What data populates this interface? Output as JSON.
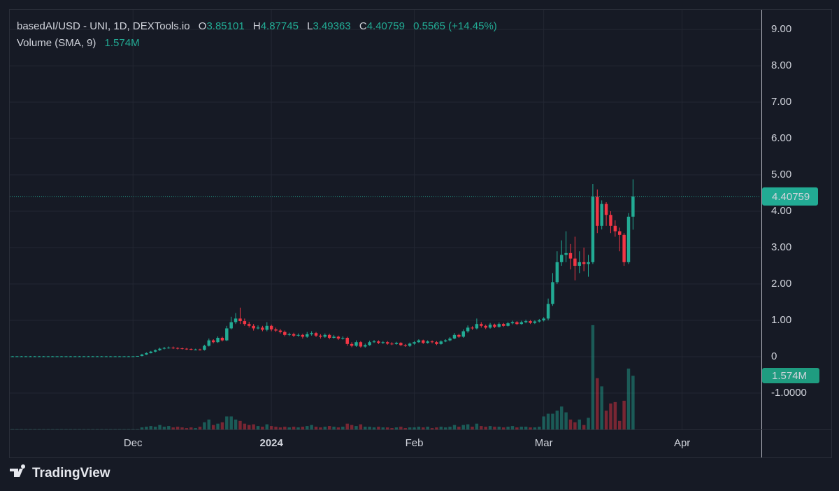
{
  "chart_data": {
    "type": "candlestick",
    "title": "basedAI/USD - UNI, 1D, DEXTools.io",
    "ohlc_labels": [
      "O",
      "H",
      "L",
      "C"
    ],
    "change": 0.5565,
    "change_percent_label": "(+14.45%)",
    "volume_title": "Volume (SMA, 9)",
    "volume_sma": {
      "value": 1.574,
      "label": "1.574M"
    },
    "categories": [
      null,
      null,
      null,
      null,
      null,
      null,
      null,
      null,
      null,
      null,
      null,
      null,
      null,
      null,
      null,
      null,
      null,
      null,
      null,
      null,
      null,
      null,
      null,
      null,
      null,
      null,
      null,
      null,
      null,
      null,
      null,
      null,
      null,
      null,
      null,
      null,
      null,
      null,
      null,
      null,
      null,
      null,
      null,
      null,
      null,
      null,
      null,
      null,
      null,
      null,
      null,
      null,
      null,
      null,
      null,
      null,
      null,
      null,
      null,
      null,
      null,
      null,
      null,
      null,
      null,
      null,
      null,
      null,
      null,
      null,
      null,
      null,
      null,
      null,
      null,
      null,
      null,
      null,
      null,
      null,
      null,
      null,
      null,
      null,
      null,
      null,
      null,
      null,
      null,
      null,
      null,
      null,
      null,
      null,
      null,
      null,
      null,
      null,
      null,
      null,
      null,
      null,
      null,
      null,
      null,
      null,
      null,
      null,
      null,
      null,
      null,
      null,
      null,
      null,
      null,
      null,
      null,
      null,
      null,
      null,
      null,
      null,
      null,
      null,
      null,
      null,
      null,
      null,
      null,
      null,
      null,
      null,
      null,
      null,
      null,
      null,
      null,
      null,
      null,
      null,
      null
    ],
    "open": [
      0.01,
      0.01,
      0.01,
      0.01,
      0.01,
      0.01,
      0.01,
      0.01,
      0.01,
      0.01,
      0.01,
      0.01,
      0.01,
      0.01,
      0.01,
      0.01,
      0.01,
      0.01,
      0.01,
      0.01,
      0.01,
      0.01,
      0.01,
      0.01,
      0.01,
      0.01,
      0.01,
      0.01,
      0.01,
      0.01,
      0.02,
      0.06,
      0.1,
      0.14,
      0.18,
      0.22,
      0.24,
      0.25,
      0.24,
      0.23,
      0.22,
      0.21,
      0.2,
      0.2,
      0.19,
      0.3,
      0.45,
      0.4,
      0.52,
      0.45,
      0.78,
      0.95,
      1.05,
      0.98,
      0.9,
      0.85,
      0.78,
      0.8,
      0.74,
      0.85,
      0.75,
      0.72,
      0.68,
      0.6,
      0.62,
      0.58,
      0.6,
      0.55,
      0.62,
      0.65,
      0.58,
      0.55,
      0.6,
      0.52,
      0.55,
      0.5,
      0.52,
      0.35,
      0.3,
      0.4,
      0.28,
      0.32,
      0.4,
      0.42,
      0.38,
      0.4,
      0.36,
      0.35,
      0.38,
      0.32,
      0.3,
      0.36,
      0.4,
      0.45,
      0.38,
      0.42,
      0.4,
      0.35,
      0.42,
      0.45,
      0.5,
      0.6,
      0.55,
      0.7,
      0.8,
      0.78,
      0.9,
      0.85,
      0.8,
      0.88,
      0.82,
      0.9,
      0.85,
      0.92,
      0.95,
      0.9,
      0.95,
      0.98,
      0.93,
      0.97,
      1.0,
      1.05,
      1.45,
      2.05,
      2.6,
      2.8,
      2.85,
      2.7,
      2.5,
      2.6,
      2.55,
      2.6,
      4.4,
      3.6,
      4.2,
      3.9,
      3.6,
      3.45,
      3.35,
      2.6,
      3.85101
    ],
    "high": [
      0.02,
      0.02,
      0.02,
      0.02,
      0.02,
      0.02,
      0.02,
      0.02,
      0.02,
      0.02,
      0.02,
      0.02,
      0.02,
      0.02,
      0.02,
      0.02,
      0.02,
      0.02,
      0.02,
      0.02,
      0.02,
      0.02,
      0.02,
      0.02,
      0.02,
      0.02,
      0.02,
      0.02,
      0.02,
      0.02,
      0.08,
      0.12,
      0.16,
      0.2,
      0.25,
      0.27,
      0.28,
      0.28,
      0.26,
      0.25,
      0.24,
      0.23,
      0.22,
      0.22,
      0.33,
      0.5,
      0.48,
      0.56,
      0.55,
      0.85,
      1.1,
      1.2,
      1.35,
      1.05,
      0.96,
      0.9,
      0.86,
      0.85,
      0.95,
      0.88,
      0.8,
      0.76,
      0.72,
      0.66,
      0.66,
      0.64,
      0.63,
      0.68,
      0.7,
      0.68,
      0.62,
      0.64,
      0.63,
      0.6,
      0.58,
      0.56,
      0.55,
      0.4,
      0.45,
      0.43,
      0.36,
      0.44,
      0.46,
      0.45,
      0.43,
      0.43,
      0.4,
      0.41,
      0.4,
      0.35,
      0.39,
      0.43,
      0.48,
      0.47,
      0.45,
      0.45,
      0.43,
      0.45,
      0.48,
      0.54,
      0.65,
      0.63,
      0.75,
      0.86,
      0.84,
      1.05,
      0.95,
      0.88,
      0.93,
      0.91,
      0.94,
      0.93,
      0.96,
      0.99,
      0.98,
      0.99,
      1.02,
      1.01,
      1.0,
      1.04,
      1.09,
      1.6,
      2.3,
      2.9,
      3.2,
      3.45,
      3.1,
      3.3,
      2.9,
      3.0,
      2.8,
      4.75,
      4.6,
      4.3,
      4.25,
      4.0,
      3.75,
      3.55,
      3.4,
      3.95,
      4.87745
    ],
    "low": [
      0.0,
      0.0,
      0.0,
      0.0,
      0.0,
      0.0,
      0.0,
      0.0,
      0.0,
      0.0,
      0.0,
      0.0,
      0.0,
      0.0,
      0.0,
      0.0,
      0.0,
      0.0,
      0.0,
      0.0,
      0.0,
      0.0,
      0.0,
      0.0,
      0.0,
      0.0,
      0.0,
      0.0,
      0.0,
      0.0,
      0.01,
      0.05,
      0.09,
      0.12,
      0.16,
      0.2,
      0.22,
      0.21,
      0.2,
      0.2,
      0.19,
      0.18,
      0.18,
      0.17,
      0.17,
      0.28,
      0.37,
      0.38,
      0.42,
      0.43,
      0.75,
      0.9,
      0.9,
      0.85,
      0.8,
      0.72,
      0.75,
      0.7,
      0.7,
      0.7,
      0.68,
      0.64,
      0.56,
      0.57,
      0.54,
      0.55,
      0.5,
      0.52,
      0.58,
      0.54,
      0.5,
      0.52,
      0.48,
      0.5,
      0.46,
      0.47,
      0.3,
      0.26,
      0.27,
      0.25,
      0.25,
      0.3,
      0.38,
      0.35,
      0.35,
      0.33,
      0.32,
      0.33,
      0.29,
      0.27,
      0.27,
      0.33,
      0.38,
      0.35,
      0.36,
      0.37,
      0.32,
      0.33,
      0.4,
      0.42,
      0.48,
      0.52,
      0.52,
      0.66,
      0.74,
      0.75,
      0.8,
      0.76,
      0.77,
      0.79,
      0.8,
      0.82,
      0.83,
      0.89,
      0.87,
      0.88,
      0.92,
      0.9,
      0.9,
      0.94,
      0.97,
      1.0,
      1.4,
      2.0,
      2.5,
      2.6,
      2.4,
      2.1,
      2.3,
      2.35,
      2.2,
      2.55,
      3.4,
      3.5,
      3.6,
      3.4,
      3.3,
      2.9,
      2.5,
      2.55,
      3.49363
    ],
    "close": [
      0.01,
      0.01,
      0.01,
      0.01,
      0.01,
      0.01,
      0.01,
      0.01,
      0.01,
      0.01,
      0.01,
      0.01,
      0.01,
      0.01,
      0.01,
      0.01,
      0.01,
      0.01,
      0.01,
      0.01,
      0.01,
      0.01,
      0.01,
      0.01,
      0.01,
      0.01,
      0.01,
      0.01,
      0.01,
      0.02,
      0.06,
      0.1,
      0.14,
      0.18,
      0.22,
      0.24,
      0.25,
      0.24,
      0.23,
      0.22,
      0.21,
      0.2,
      0.2,
      0.19,
      0.3,
      0.45,
      0.4,
      0.52,
      0.45,
      0.78,
      0.95,
      1.05,
      0.98,
      0.9,
      0.85,
      0.78,
      0.8,
      0.74,
      0.85,
      0.75,
      0.72,
      0.68,
      0.6,
      0.62,
      0.58,
      0.6,
      0.55,
      0.62,
      0.65,
      0.58,
      0.55,
      0.6,
      0.52,
      0.55,
      0.5,
      0.52,
      0.35,
      0.3,
      0.4,
      0.28,
      0.32,
      0.4,
      0.42,
      0.38,
      0.4,
      0.36,
      0.35,
      0.38,
      0.32,
      0.3,
      0.36,
      0.4,
      0.45,
      0.38,
      0.42,
      0.4,
      0.35,
      0.42,
      0.45,
      0.5,
      0.6,
      0.55,
      0.7,
      0.8,
      0.78,
      0.9,
      0.85,
      0.8,
      0.88,
      0.82,
      0.9,
      0.85,
      0.92,
      0.95,
      0.9,
      0.95,
      0.98,
      0.93,
      0.97,
      1.0,
      1.05,
      1.45,
      2.05,
      2.6,
      2.8,
      2.85,
      2.7,
      2.5,
      2.6,
      2.55,
      2.6,
      4.4,
      3.6,
      4.2,
      3.9,
      3.6,
      3.45,
      3.35,
      2.6,
      3.85101,
      4.40759
    ],
    "volume": [
      0.01,
      0.01,
      0.01,
      0.01,
      0.01,
      0.01,
      0.01,
      0.01,
      0.01,
      0.01,
      0.01,
      0.01,
      0.01,
      0.01,
      0.01,
      0.01,
      0.01,
      0.01,
      0.01,
      0.01,
      0.01,
      0.01,
      0.01,
      0.01,
      0.01,
      0.01,
      0.01,
      0.01,
      0.01,
      0.01,
      0.06,
      0.08,
      0.1,
      0.08,
      0.13,
      0.08,
      0.1,
      0.06,
      0.08,
      0.06,
      0.04,
      0.06,
      0.04,
      0.08,
      0.21,
      0.29,
      0.13,
      0.17,
      0.21,
      0.38,
      0.38,
      0.29,
      0.25,
      0.17,
      0.13,
      0.15,
      0.1,
      0.08,
      0.15,
      0.1,
      0.08,
      0.06,
      0.08,
      0.06,
      0.08,
      0.06,
      0.08,
      0.1,
      0.13,
      0.08,
      0.06,
      0.08,
      0.1,
      0.08,
      0.06,
      0.08,
      0.17,
      0.13,
      0.1,
      0.15,
      0.08,
      0.08,
      0.06,
      0.08,
      0.06,
      0.06,
      0.04,
      0.06,
      0.08,
      0.04,
      0.06,
      0.06,
      0.08,
      0.06,
      0.08,
      0.04,
      0.06,
      0.08,
      0.06,
      0.08,
      0.13,
      0.08,
      0.13,
      0.15,
      0.08,
      0.17,
      0.1,
      0.08,
      0.1,
      0.08,
      0.08,
      0.06,
      0.08,
      0.1,
      0.06,
      0.08,
      0.08,
      0.06,
      0.06,
      0.08,
      0.38,
      0.46,
      0.46,
      0.55,
      0.67,
      0.5,
      0.29,
      0.21,
      0.29,
      0.13,
      0.34,
      3.05,
      1.5,
      1.26,
      0.55,
      0.76,
      0.8,
      0.25,
      0.84,
      1.78,
      1.57
    ],
    "xlim": [
      0.4,
      168.6
    ],
    "xticks": [
      {
        "value": 28,
        "label": "Dec"
      },
      {
        "value": 59,
        "label": "2024"
      },
      {
        "value": 91,
        "label": "Feb"
      },
      {
        "value": 120,
        "label": "Mar"
      },
      {
        "value": 151,
        "label": "Apr"
      }
    ],
    "ylim": [
      -2,
      9.54
    ],
    "yticks": [
      {
        "value": 9,
        "label": "9.00"
      },
      {
        "value": 8,
        "label": "8.00"
      },
      {
        "value": 7,
        "label": "7.00"
      },
      {
        "value": 6,
        "label": "6.00"
      },
      {
        "value": 5,
        "label": "5.00"
      },
      {
        "value": 4,
        "label": "4.00"
      },
      {
        "value": 3,
        "label": "3.00"
      },
      {
        "value": 2,
        "label": "2.00"
      },
      {
        "value": 1,
        "label": "1.00"
      },
      0,
      {
        "value": -1,
        "label": "-1.0000"
      }
    ],
    "y2lim": [
      0,
      12.27
    ],
    "up_color": "#22ab94",
    "down_color": "#f23645",
    "grid": true
  },
  "footer": {
    "brand": "TradingView"
  }
}
